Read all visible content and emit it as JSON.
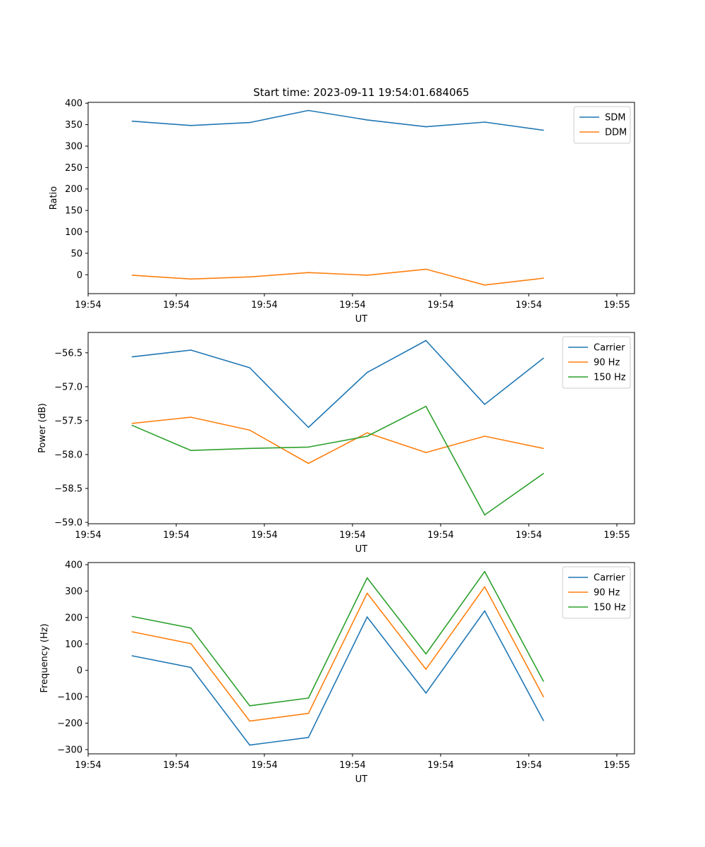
{
  "chart_data": [
    {
      "type": "line",
      "title": "Start time: 2023-09-11 19:54:01.684065",
      "xlabel": "UT",
      "ylabel": "Ratio",
      "xlim": [
        0,
        9.3
      ],
      "ylim": [
        -44,
        402
      ],
      "x": [
        0.75,
        1.75,
        2.75,
        3.75,
        4.75,
        5.75,
        6.75,
        7.75
      ],
      "xticks": [
        0,
        1.5,
        3,
        4.5,
        6,
        7.5,
        9
      ],
      "xtick_labels": [
        "19:54",
        "19:54",
        "19:54",
        "19:54",
        "19:54",
        "19:54",
        "19:55"
      ],
      "yticks": [
        0,
        50,
        100,
        150,
        200,
        250,
        300,
        350,
        400
      ],
      "ytick_labels": [
        "0",
        "50",
        "100",
        "150",
        "200",
        "250",
        "300",
        "350",
        "400"
      ],
      "legend_position": "top-right",
      "series": [
        {
          "name": "SDM",
          "color": "#1f77b4",
          "values": [
            358,
            348,
            355,
            383,
            361,
            345,
            356,
            337
          ]
        },
        {
          "name": "DDM",
          "color": "#ff7f0e",
          "values": [
            -1,
            -10,
            -5,
            5,
            -1,
            13,
            -24,
            -8
          ]
        }
      ]
    },
    {
      "type": "line",
      "title": "",
      "xlabel": "UT",
      "ylabel": "Power (dB)",
      "xlim": [
        0,
        9.3
      ],
      "ylim": [
        -59.02,
        -56.2
      ],
      "x": [
        0.75,
        1.75,
        2.75,
        3.75,
        4.75,
        5.75,
        6.75,
        7.75
      ],
      "xticks": [
        0,
        1.5,
        3,
        4.5,
        6,
        7.5,
        9
      ],
      "xtick_labels": [
        "19:54",
        "19:54",
        "19:54",
        "19:54",
        "19:54",
        "19:54",
        "19:55"
      ],
      "yticks": [
        -56.5,
        -57.0,
        -57.5,
        -58.0,
        -58.5,
        -59.0
      ],
      "ytick_labels": [
        "−56.5",
        "−57.0",
        "−57.5",
        "−58.0",
        "−58.5",
        "−59.0"
      ],
      "legend_position": "top-right",
      "series": [
        {
          "name": "Carrier",
          "color": "#1f77b4",
          "values": [
            -56.56,
            -56.46,
            -56.72,
            -57.6,
            -56.79,
            -56.32,
            -57.26,
            -56.58
          ]
        },
        {
          "name": "90 Hz",
          "color": "#ff7f0e",
          "values": [
            -57.54,
            -57.45,
            -57.64,
            -58.13,
            -57.68,
            -57.97,
            -57.73,
            -57.91
          ]
        },
        {
          "name": "150 Hz",
          "color": "#2ca02c",
          "values": [
            -57.57,
            -57.94,
            -57.91,
            -57.89,
            -57.73,
            -57.29,
            -58.89,
            -58.28
          ]
        }
      ]
    },
    {
      "type": "line",
      "title": "",
      "xlabel": "UT",
      "ylabel": "Frequency (Hz)",
      "xlim": [
        0,
        9.3
      ],
      "ylim": [
        -316,
        408
      ],
      "x": [
        0.75,
        1.75,
        2.75,
        3.75,
        4.75,
        5.75,
        6.75,
        7.75
      ],
      "xticks": [
        0,
        1.5,
        3,
        4.5,
        6,
        7.5,
        9
      ],
      "xtick_labels": [
        "19:54",
        "19:54",
        "19:54",
        "19:54",
        "19:54",
        "19:54",
        "19:55"
      ],
      "yticks": [
        -300,
        -200,
        -100,
        0,
        100,
        200,
        300,
        400
      ],
      "ytick_labels": [
        "−300",
        "−200",
        "−100",
        "0",
        "100",
        "200",
        "300",
        "400"
      ],
      "legend_position": "top-right",
      "series": [
        {
          "name": "Carrier",
          "color": "#1f77b4",
          "values": [
            55,
            11,
            -283,
            -254,
            202,
            -86,
            225,
            -190
          ]
        },
        {
          "name": "90 Hz",
          "color": "#ff7f0e",
          "values": [
            146,
            101,
            -192,
            -163,
            292,
            4,
            316,
            -100
          ]
        },
        {
          "name": "150 Hz",
          "color": "#2ca02c",
          "values": [
            204,
            160,
            -134,
            -105,
            350,
            62,
            374,
            -41
          ]
        }
      ]
    }
  ]
}
